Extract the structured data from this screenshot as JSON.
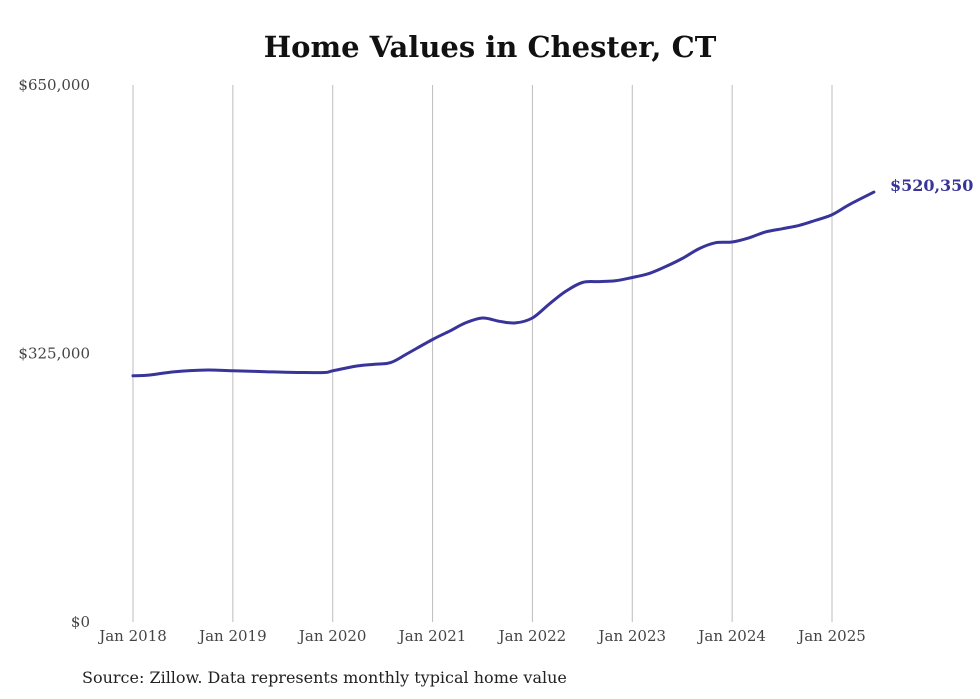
{
  "chart_data": {
    "type": "line",
    "title": "Home Values in Chester, CT",
    "xlabel": "",
    "ylabel": "",
    "x_tick_labels": [
      "Jan 2018",
      "Jan 2019",
      "Jan 2020",
      "Jan 2021",
      "Jan 2022",
      "Jan 2023",
      "Jan 2024",
      "Jan 2025"
    ],
    "x_tick_values": [
      2018,
      2019,
      2020,
      2021,
      2022,
      2023,
      2024,
      2025
    ],
    "y_tick_labels": [
      "$0",
      "$325,000",
      "$650,000"
    ],
    "y_tick_values": [
      0,
      325000,
      650000
    ],
    "xlim": [
      2018,
      2025.42
    ],
    "ylim": [
      0,
      650000
    ],
    "grid": "vertical",
    "series": [
      {
        "color": "#38349a",
        "x": [
          2018.0,
          2018.17,
          2018.42,
          2018.75,
          2019.0,
          2019.33,
          2019.67,
          2019.92,
          2020.0,
          2020.25,
          2020.42,
          2020.58,
          2020.75,
          2021.0,
          2021.17,
          2021.33,
          2021.5,
          2021.67,
          2021.83,
          2022.0,
          2022.17,
          2022.33,
          2022.5,
          2022.67,
          2022.83,
          2023.0,
          2023.17,
          2023.33,
          2023.5,
          2023.67,
          2023.83,
          2024.0,
          2024.17,
          2024.33,
          2024.5,
          2024.67,
          2024.83,
          2025.0,
          2025.17,
          2025.42
        ],
        "values": [
          298000,
          299000,
          303000,
          305000,
          304000,
          303000,
          302000,
          302000,
          304000,
          310000,
          312000,
          314000,
          325000,
          342000,
          352000,
          362000,
          368000,
          364000,
          362000,
          368000,
          385000,
          400000,
          411000,
          412000,
          413000,
          417000,
          422000,
          430000,
          440000,
          452000,
          459000,
          460000,
          465000,
          472000,
          476000,
          480000,
          486000,
          493000,
          505000,
          520350
        ]
      }
    ],
    "end_label": "$520,350"
  },
  "source_note": "Source: Zillow. Data represents monthly typical home value"
}
